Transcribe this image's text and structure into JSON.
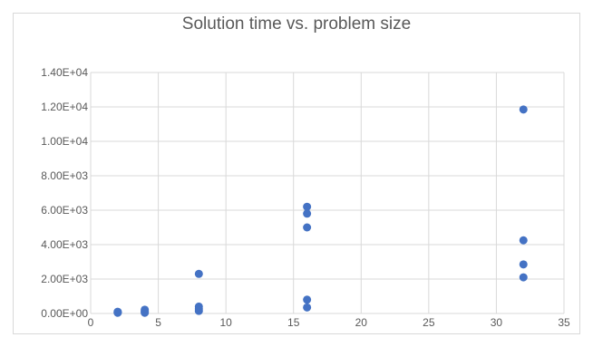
{
  "chart_data": {
    "type": "scatter",
    "title": "Solution time vs. problem size",
    "xlabel": "",
    "ylabel": "",
    "xlim": [
      0,
      35
    ],
    "ylim": [
      0,
      14000
    ],
    "x_ticks": [
      "0",
      "5",
      "10",
      "15",
      "20",
      "25",
      "30",
      "35"
    ],
    "y_ticks": [
      "0.00E+00",
      "2.00E+03",
      "4.00E+03",
      "6.00E+03",
      "8.00E+03",
      "1.00E+04",
      "1.20E+04",
      "1.40E+04"
    ],
    "grid": true,
    "legend": "none",
    "marker_color": "#4472c4",
    "series": [
      {
        "points": [
          {
            "x": 2,
            "y": 40
          },
          {
            "x": 2,
            "y": 60
          },
          {
            "x": 2,
            "y": 80
          },
          {
            "x": 2,
            "y": 100
          },
          {
            "x": 4,
            "y": 40
          },
          {
            "x": 4,
            "y": 90
          },
          {
            "x": 4,
            "y": 150
          },
          {
            "x": 4,
            "y": 220
          },
          {
            "x": 8,
            "y": 150
          },
          {
            "x": 8,
            "y": 270
          },
          {
            "x": 8,
            "y": 400
          },
          {
            "x": 8,
            "y": 2300
          },
          {
            "x": 16,
            "y": 350
          },
          {
            "x": 16,
            "y": 800
          },
          {
            "x": 16,
            "y": 5000
          },
          {
            "x": 16,
            "y": 5800
          },
          {
            "x": 16,
            "y": 6200
          },
          {
            "x": 32,
            "y": 2100
          },
          {
            "x": 32,
            "y": 2850
          },
          {
            "x": 32,
            "y": 4250
          },
          {
            "x": 32,
            "y": 11850
          }
        ]
      }
    ]
  }
}
